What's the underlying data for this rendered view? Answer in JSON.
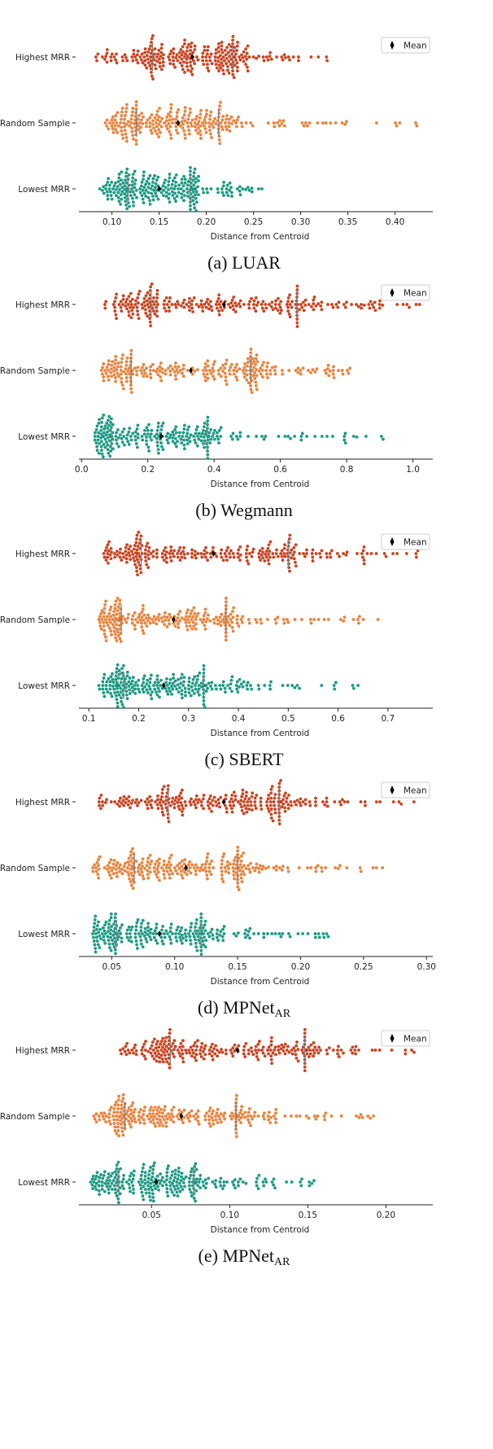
{
  "chart_data": [
    {
      "type": "scatter",
      "subtype": "swarm",
      "caption": "(a) LUAR",
      "caption_sub": "",
      "xlabel": "Distance from Centroid",
      "ticks": [
        "0.10",
        "0.15",
        "0.20",
        "0.25",
        "0.30",
        "0.35",
        "0.40"
      ],
      "tick_values": [
        0.1,
        0.15,
        0.2,
        0.25,
        0.3,
        0.35,
        0.4
      ],
      "xlim": [
        0.065,
        0.44
      ],
      "legend": "Mean",
      "legend_position": "top-right",
      "categories": [
        "Highest MRR",
        "Random Sample",
        "Lowest MRR"
      ],
      "series": [
        {
          "name": "Highest MRR",
          "mean": 0.185,
          "q25": 0.143,
          "q75": 0.228,
          "min": 0.083,
          "max": 0.328
        },
        {
          "name": "Random Sample",
          "mean": 0.17,
          "q25": 0.126,
          "q75": 0.213,
          "min": 0.093,
          "max": 0.423
        },
        {
          "name": "Lowest MRR",
          "mean": 0.15,
          "q25": 0.117,
          "q75": 0.183,
          "min": 0.087,
          "max": 0.259
        }
      ]
    },
    {
      "type": "scatter",
      "subtype": "swarm",
      "caption": "(b) Wegmann",
      "caption_sub": "",
      "xlabel": "Distance from Centroid",
      "ticks": [
        "0.0",
        "0.2",
        "0.4",
        "0.6",
        "0.8",
        "1.0"
      ],
      "tick_values": [
        0,
        0.2,
        0.4,
        0.6,
        0.8,
        1.0
      ],
      "xlim": [
        -0.008,
        1.06
      ],
      "legend": "Mean",
      "legend_position": "top-right",
      "categories": [
        "Highest MRR",
        "Random Sample",
        "Lowest MRR"
      ],
      "series": [
        {
          "name": "Highest MRR",
          "mean": 0.43,
          "q25": 0.21,
          "q75": 0.65,
          "min": 0.07,
          "max": 1.02
        },
        {
          "name": "Random Sample",
          "mean": 0.33,
          "q25": 0.15,
          "q75": 0.51,
          "min": 0.06,
          "max": 0.81
        },
        {
          "name": "Lowest MRR",
          "mean": 0.24,
          "q25": 0.09,
          "q75": 0.38,
          "min": 0.04,
          "max": 0.91
        }
      ]
    },
    {
      "type": "scatter",
      "subtype": "swarm",
      "caption": "(c) SBERT",
      "caption_sub": "",
      "xlabel": "Distance from Centroid",
      "ticks": [
        "0.1",
        "0.2",
        "0.3",
        "0.4",
        "0.5",
        "0.6",
        "0.7"
      ],
      "tick_values": [
        0.1,
        0.2,
        0.3,
        0.4,
        0.5,
        0.6,
        0.7
      ],
      "xlim": [
        0.08,
        0.79
      ],
      "legend": "Mean",
      "legend_position": "top-right",
      "categories": [
        "Highest MRR",
        "Random Sample",
        "Lowest MRR"
      ],
      "series": [
        {
          "name": "Highest MRR",
          "mean": 0.35,
          "q25": 0.205,
          "q75": 0.5,
          "min": 0.13,
          "max": 0.76
        },
        {
          "name": "Random Sample",
          "mean": 0.27,
          "q25": 0.165,
          "q75": 0.375,
          "min": 0.12,
          "max": 0.68
        },
        {
          "name": "Lowest MRR",
          "mean": 0.25,
          "q25": 0.17,
          "q75": 0.33,
          "min": 0.12,
          "max": 0.64
        }
      ]
    },
    {
      "type": "scatter",
      "subtype": "swarm",
      "caption": "(d) MPNet",
      "caption_sub": "AR",
      "xlabel": "Distance from Centroid",
      "ticks": [
        "0.05",
        "0.10",
        "0.15",
        "0.20",
        "0.25",
        "0.30"
      ],
      "tick_values": [
        0.05,
        0.1,
        0.15,
        0.2,
        0.25,
        0.3
      ],
      "xlim": [
        0.024,
        0.305
      ],
      "legend": "Mean",
      "legend_position": "top-right",
      "categories": [
        "Highest MRR",
        "Random Sample",
        "Lowest MRR"
      ],
      "series": [
        {
          "name": "Highest MRR",
          "mean": 0.139,
          "q25": 0.095,
          "q75": 0.183,
          "min": 0.04,
          "max": 0.29
        },
        {
          "name": "Random Sample",
          "mean": 0.109,
          "q25": 0.068,
          "q75": 0.15,
          "min": 0.035,
          "max": 0.265
        },
        {
          "name": "Lowest MRR",
          "mean": 0.088,
          "q25": 0.054,
          "q75": 0.121,
          "min": 0.035,
          "max": 0.222
        }
      ]
    },
    {
      "type": "scatter",
      "subtype": "swarm",
      "caption": "(e) MPNet",
      "caption_sub": "AR",
      "xlabel": "Distance from Centroid",
      "ticks": [
        "0.05",
        "0.10",
        "0.15",
        "0.20"
      ],
      "tick_values": [
        0.05,
        0.1,
        0.15,
        0.2
      ],
      "xlim": [
        0.0035,
        0.23
      ],
      "legend": "Mean",
      "legend_position": "top-right",
      "categories": [
        "Highest MRR",
        "Random Sample",
        "Lowest MRR"
      ],
      "series": [
        {
          "name": "Highest MRR",
          "mean": 0.105,
          "q25": 0.062,
          "q75": 0.148,
          "min": 0.03,
          "max": 0.218
        },
        {
          "name": "Random Sample",
          "mean": 0.069,
          "q25": 0.033,
          "q75": 0.104,
          "min": 0.013,
          "max": 0.192
        },
        {
          "name": "Lowest MRR",
          "mean": 0.053,
          "q25": 0.029,
          "q75": 0.077,
          "min": 0.011,
          "max": 0.154
        }
      ]
    }
  ],
  "colors": {
    "Highest MRR": "#d5401a",
    "Random Sample": "#f28536",
    "Lowest MRR": "#169f88",
    "mean": "#000000",
    "quartile_line": "#808080"
  }
}
